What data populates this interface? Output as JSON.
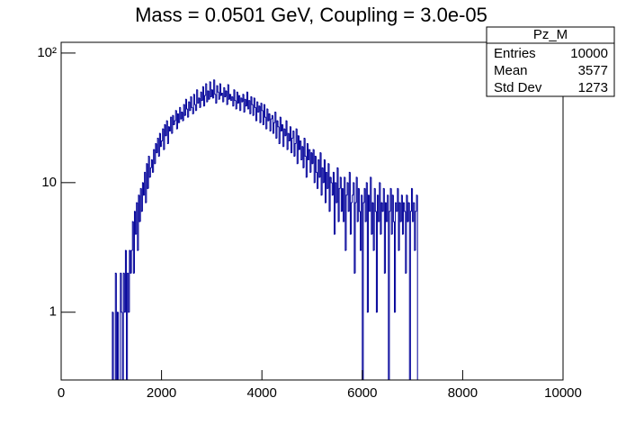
{
  "chart_data": {
    "type": "histogram",
    "title": "Mass = 0.0501 GeV, Coupling = 3.0e-05",
    "color": "#000099",
    "log_y": true,
    "xlim": [
      0,
      10000
    ],
    "xticks": [
      0,
      2000,
      4000,
      6000,
      8000,
      10000
    ],
    "ylim": [
      0.3,
      121
    ],
    "yticks": [
      1,
      10,
      {
        "value": 100,
        "label": "10²"
      }
    ],
    "stats": {
      "name": "Pz_M",
      "rows": [
        [
          "Entries",
          "10000"
        ],
        [
          "Mean",
          "3577"
        ],
        [
          "Std Dev",
          "1273"
        ]
      ]
    },
    "bins": [
      1000,
      1020,
      1040,
      1060,
      1080,
      1100,
      1120,
      1140,
      1160,
      1180,
      1200,
      1220,
      1240,
      1260,
      1280,
      1300,
      1320,
      1340,
      1360,
      1380,
      1400,
      1420,
      1440,
      1460,
      1480,
      1500,
      1520,
      1540,
      1560,
      1580,
      1600,
      1620,
      1640,
      1660,
      1680,
      1700,
      1720,
      1740,
      1760,
      1780,
      1800,
      1820,
      1840,
      1860,
      1880,
      1900,
      1920,
      1940,
      1960,
      1980,
      2000,
      2020,
      2040,
      2060,
      2080,
      2100,
      2120,
      2140,
      2160,
      2180,
      2200,
      2220,
      2240,
      2260,
      2280,
      2300,
      2320,
      2340,
      2360,
      2380,
      2400,
      2420,
      2440,
      2460,
      2480,
      2500,
      2520,
      2540,
      2560,
      2580,
      2600,
      2620,
      2640,
      2660,
      2680,
      2700,
      2720,
      2740,
      2760,
      2780,
      2800,
      2820,
      2840,
      2860,
      2880,
      2900,
      2920,
      2940,
      2960,
      2980,
      3000,
      3020,
      3040,
      3060,
      3080,
      3100,
      3120,
      3140,
      3160,
      3180,
      3200,
      3220,
      3240,
      3260,
      3280,
      3300,
      3320,
      3340,
      3360,
      3380,
      3400,
      3420,
      3440,
      3460,
      3480,
      3500,
      3520,
      3540,
      3560,
      3580,
      3600,
      3620,
      3640,
      3660,
      3680,
      3700,
      3720,
      3740,
      3760,
      3780,
      3800,
      3820,
      3840,
      3860,
      3880,
      3900,
      3920,
      3940,
      3960,
      3980,
      4000,
      4020,
      4040,
      4060,
      4080,
      4100,
      4120,
      4140,
      4160,
      4180,
      4200,
      4220,
      4240,
      4260,
      4280,
      4300,
      4320,
      4340,
      4360,
      4380,
      4400,
      4420,
      4440,
      4460,
      4480,
      4500,
      4520,
      4540,
      4560,
      4580,
      4600,
      4620,
      4640,
      4660,
      4680,
      4700,
      4720,
      4740,
      4760,
      4780,
      4800,
      4820,
      4840,
      4860,
      4880,
      4900,
      4920,
      4940,
      4960,
      4980,
      5000,
      5020,
      5040,
      5060,
      5080,
      5100,
      5120,
      5140,
      5160,
      5180,
      5200,
      5220,
      5240,
      5260,
      5280,
      5300,
      5320,
      5340,
      5360,
      5380,
      5400,
      5420,
      5440,
      5460,
      5480,
      5500,
      5520,
      5540,
      5560,
      5580,
      5600,
      5620,
      5640,
      5660,
      5680,
      5700,
      5720,
      5740,
      5760,
      5780,
      5800,
      5820,
      5840,
      5860,
      5880,
      5900,
      5920,
      5940,
      5960,
      5980,
      6000,
      6020,
      6040,
      6060,
      6080,
      6100,
      6120,
      6140,
      6160,
      6180,
      6200,
      6220,
      6240,
      6260,
      6280,
      6300,
      6320,
      6340,
      6360,
      6380,
      6400,
      6420,
      6440,
      6460,
      6480,
      6500,
      6520,
      6540,
      6560,
      6580,
      6600,
      6620,
      6640,
      6660,
      6680,
      6700,
      6720,
      6740,
      6760,
      6780,
      6800,
      6820,
      6840,
      6860,
      6880,
      6900,
      6920,
      6940,
      6960,
      6980,
      7000,
      7020,
      7040,
      7060,
      7080,
      7100
    ],
    "counts": [
      0,
      1,
      0,
      0,
      2,
      0,
      1,
      0,
      0,
      2,
      1,
      0,
      2,
      1,
      3,
      0,
      2,
      1,
      3,
      2,
      3,
      5,
      2,
      6,
      4,
      7,
      3,
      8,
      5,
      9,
      6,
      10,
      8,
      12,
      7,
      14,
      9,
      16,
      11,
      13,
      15,
      12,
      18,
      14,
      20,
      17,
      22,
      16,
      24,
      19,
      21,
      26,
      18,
      28,
      23,
      30,
      20,
      27,
      25,
      32,
      24,
      33,
      28,
      30,
      36,
      26,
      34,
      29,
      38,
      31,
      35,
      30,
      40,
      33,
      44,
      37,
      32,
      42,
      36,
      46,
      38,
      34,
      48,
      40,
      36,
      52,
      41,
      45,
      38,
      50,
      43,
      55,
      39,
      47,
      58,
      42,
      51,
      44,
      60,
      46,
      52,
      45,
      62,
      48,
      41,
      56,
      50,
      44,
      58,
      47,
      49,
      42,
      54,
      46,
      51,
      40,
      57,
      44,
      48,
      43,
      46,
      39,
      52,
      43,
      37,
      50,
      41,
      47,
      36,
      45,
      42,
      48,
      35,
      44,
      39,
      50,
      37,
      43,
      34,
      46,
      40,
      33,
      45,
      38,
      30,
      42,
      35,
      39,
      29,
      41,
      36,
      28,
      40,
      32,
      26,
      37,
      30,
      34,
      25,
      31,
      33,
      24,
      29,
      35,
      22,
      30,
      27,
      20,
      32,
      25,
      28,
      19,
      26,
      23,
      30,
      18,
      24,
      21,
      27,
      17,
      22,
      25,
      16,
      20,
      26,
      14,
      23,
      18,
      21,
      15,
      19,
      13,
      22,
      16,
      11,
      20,
      15,
      18,
      12,
      17,
      14,
      18,
      10,
      16,
      12,
      9,
      15,
      11,
      17,
      8,
      13,
      10,
      15,
      7,
      12,
      9,
      14,
      6,
      11,
      10,
      8,
      12,
      4,
      10,
      7,
      13,
      5,
      9,
      11,
      6,
      9,
      5,
      11,
      3,
      8,
      10,
      6,
      12,
      4,
      7,
      8,
      10,
      2,
      7,
      11,
      5,
      9,
      6,
      3,
      8,
      0,
      7,
      9,
      5,
      10,
      1,
      8,
      6,
      11,
      4,
      7,
      3,
      9,
      6,
      1,
      8,
      5,
      10,
      4,
      7,
      6,
      9,
      2,
      7,
      5,
      8,
      0,
      6,
      9,
      4,
      8,
      5,
      1,
      7,
      6,
      9,
      3,
      7,
      5,
      8,
      4,
      7,
      6,
      2,
      8,
      5,
      7,
      0,
      6,
      9,
      5,
      7,
      3,
      6,
      8
    ]
  }
}
